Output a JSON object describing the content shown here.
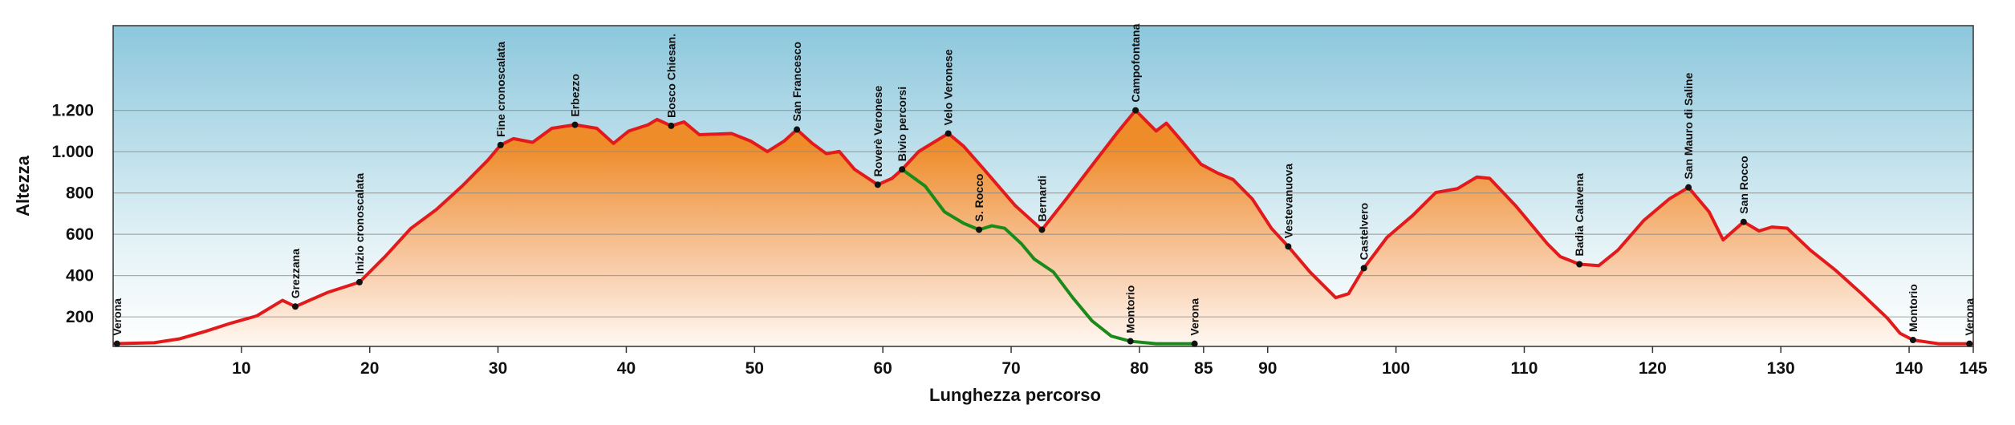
{
  "chart_data": {
    "type": "line",
    "xlabel": "Lunghezza percorso",
    "ylabel": "Altezza",
    "xlim": [
      0,
      145
    ],
    "ylim": [
      57,
      1610
    ],
    "xticks": [
      10,
      20,
      30,
      40,
      50,
      60,
      70,
      80,
      85,
      90,
      100,
      110,
      120,
      130,
      140,
      145
    ],
    "yticks": [
      200,
      400,
      600,
      800,
      {
        "value": 1000,
        "label": "1.000"
      },
      {
        "value": 1200,
        "label": "1.200"
      }
    ],
    "grid": true,
    "series": [
      {
        "color": "#e31a1c",
        "x": [
          0,
          3.2,
          5.2,
          7.2,
          9.2,
          11.2,
          13.2,
          14.2,
          16.7,
          19.2,
          21.2,
          23.2,
          25.2,
          27.2,
          29.2,
          30.2,
          31.2,
          32.7,
          34.2,
          36,
          37.7,
          39,
          40.2,
          41.7,
          42.4,
          43.5,
          44.5,
          45.7,
          48.2,
          49.7,
          51,
          52.3,
          53.3,
          54.5,
          55.6,
          56.6,
          57.8,
          59.6,
          60.7,
          61.5,
          62.8,
          65.1,
          66.3,
          67.8,
          70.3,
          72.4,
          74.3,
          76.3,
          78.3,
          79.7,
          81.3,
          82.1,
          83.3,
          84.8,
          86.1,
          87.3,
          88.8,
          90.3,
          91.6,
          93.3,
          95.3,
          96.3,
          97.5,
          99.3,
          101.3,
          103.1,
          104.8,
          106.3,
          107.3,
          109.3,
          111.8,
          112.8,
          114.3,
          115.8,
          117.3,
          119.3,
          121.3,
          122.8,
          124.4,
          125.5,
          127.1,
          128.3,
          129.3,
          130.5,
          132.3,
          134.3,
          136.3,
          138.3,
          139.3,
          140.3,
          142.3,
          145
        ],
        "values": [
          70,
          75,
          94,
          130,
          170,
          205,
          280,
          250,
          318,
          368,
          492,
          628,
          720,
          833,
          958,
          1032,
          1063,
          1045,
          1113,
          1130,
          1113,
          1040,
          1100,
          1130,
          1156,
          1125,
          1144,
          1082,
          1088,
          1051,
          1000,
          1051,
          1107,
          1040,
          990,
          1001,
          914,
          840,
          870,
          914,
          1001,
          1088,
          1026,
          920,
          740,
          622,
          771,
          933,
          1094,
          1200,
          1100,
          1138,
          1051,
          939,
          896,
          865,
          771,
          628,
          541,
          417,
          293,
          312,
          436,
          585,
          691,
          802,
          821,
          877,
          871,
          740,
          554,
          492,
          455,
          448,
          523,
          666,
          771,
          827,
          709,
          573,
          660,
          616,
          635,
          629,
          523,
          424,
          312,
          194,
          120,
          88,
          70,
          70
        ]
      },
      {
        "color": "#1a8a1a",
        "x": [
          61.5,
          63.3,
          64.8,
          66.3,
          67.5,
          68.5,
          69.5,
          70.8,
          71.8,
          73.3,
          74.8,
          76.3,
          77.8,
          79.3,
          81.3,
          84.3
        ],
        "values": [
          914,
          833,
          709,
          653,
          622,
          641,
          629,
          554,
          480,
          417,
          293,
          181,
          107,
          82,
          70,
          70
        ]
      }
    ],
    "waypoints": [
      {
        "label": "Verona",
        "x": 0.3,
        "y": 70
      },
      {
        "label": "Grezzana",
        "x": 14.2,
        "y": 250
      },
      {
        "label": "Inizio cronoscalata",
        "x": 19.2,
        "y": 368
      },
      {
        "label": "Fine cronoscalata",
        "x": 30.2,
        "y": 1032
      },
      {
        "label": "Erbezzo",
        "x": 36,
        "y": 1130
      },
      {
        "label": "Bosco Chiesan.",
        "x": 43.5,
        "y": 1125
      },
      {
        "label": "San Francesco",
        "x": 53.3,
        "y": 1107
      },
      {
        "label": "Roverè Veronese",
        "x": 59.6,
        "y": 840
      },
      {
        "label": "Bivio percorsi",
        "x": 61.5,
        "y": 914
      },
      {
        "label": "Velo Veronese",
        "x": 65.1,
        "y": 1088
      },
      {
        "label": "S. Rocco",
        "x": 67.5,
        "y": 622
      },
      {
        "label": "Bernardi",
        "x": 72.4,
        "y": 622
      },
      {
        "label": "Campofontana",
        "x": 79.7,
        "y": 1200
      },
      {
        "label": "Montorio",
        "x": 79.3,
        "y": 82
      },
      {
        "label": "Verona",
        "x": 84.3,
        "y": 70
      },
      {
        "label": "Vestevanuova",
        "x": 91.6,
        "y": 541
      },
      {
        "label": "Castelvero",
        "x": 97.5,
        "y": 436
      },
      {
        "label": "Badia Calavena",
        "x": 114.3,
        "y": 455
      },
      {
        "label": "San Mauro di Saline",
        "x": 122.8,
        "y": 827
      },
      {
        "label": "San Rocco",
        "x": 127.1,
        "y": 660
      },
      {
        "label": "Montorio",
        "x": 140.3,
        "y": 88
      },
      {
        "label": "Verona",
        "x": 144.7,
        "y": 70
      }
    ]
  }
}
